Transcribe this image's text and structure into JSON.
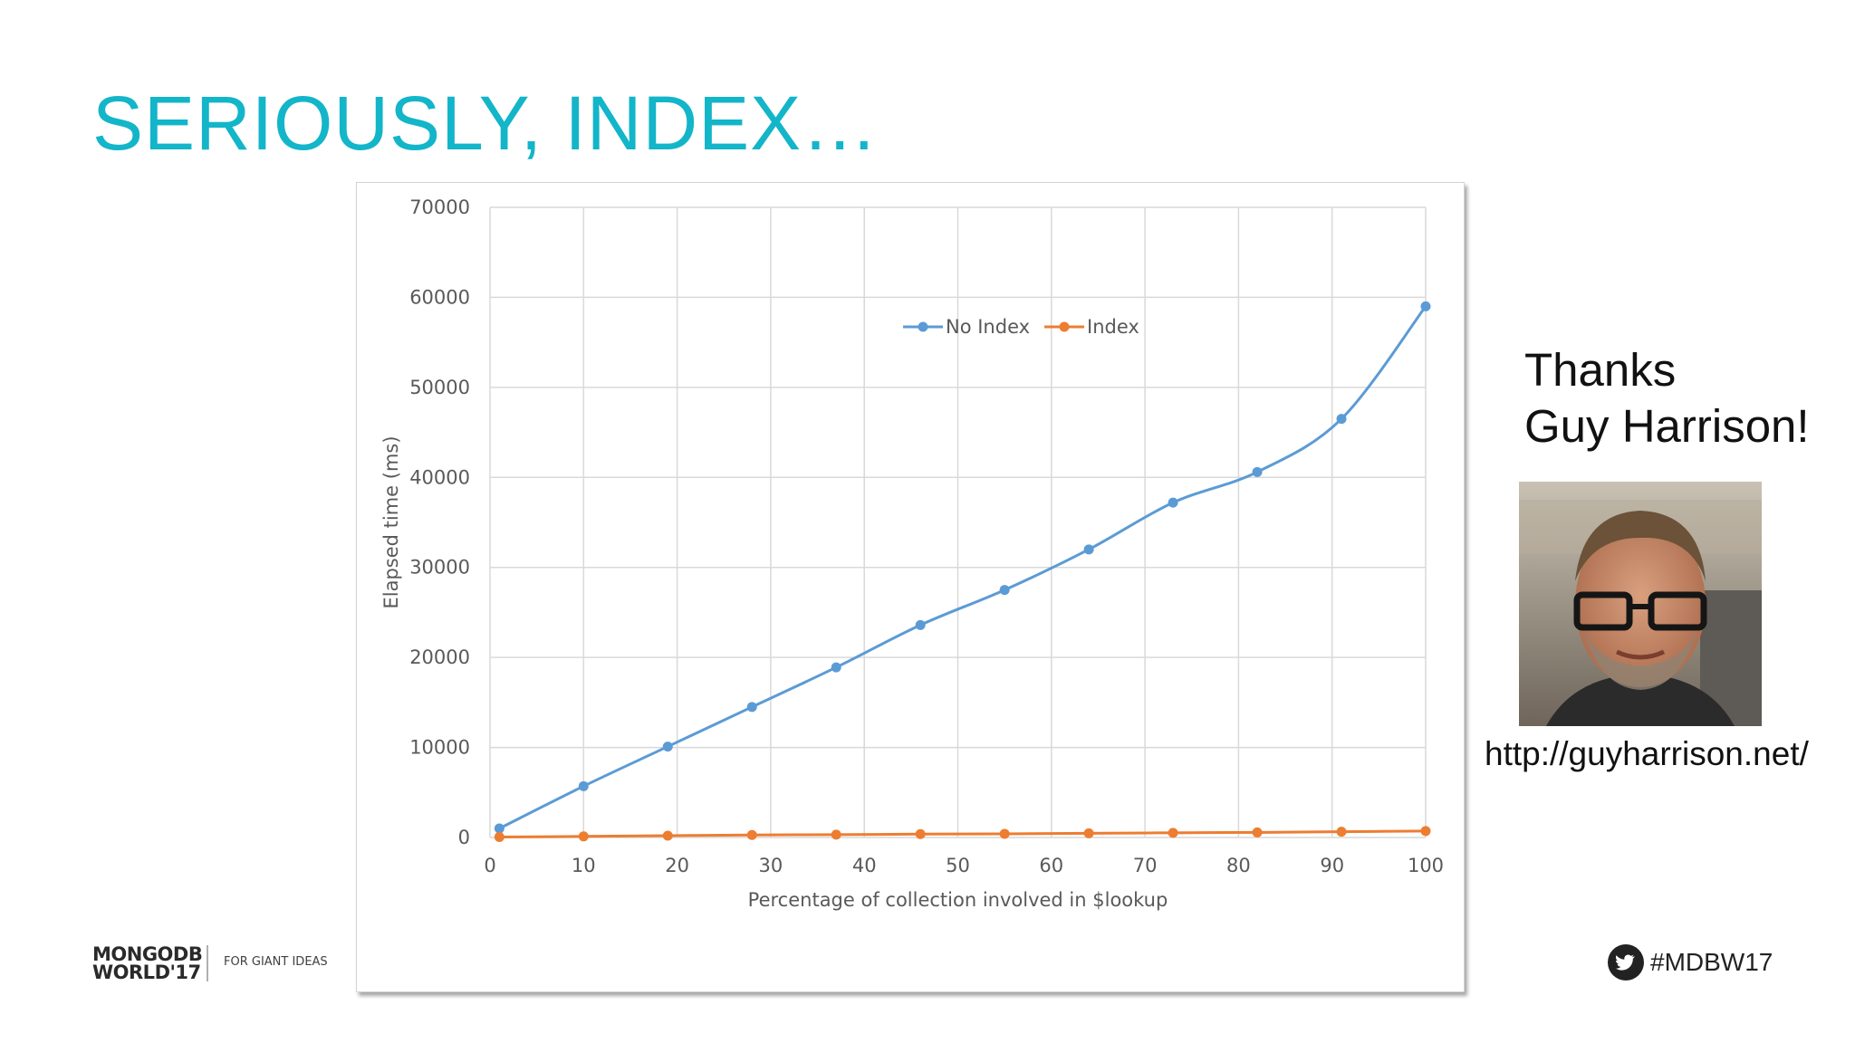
{
  "slide": {
    "title": "SERIOUSLY, INDEX…",
    "thanks_line1": "Thanks",
    "thanks_line2": "Guy Harrison!",
    "url": "http://guyharrison.net/",
    "hashtag": "#MDBW17",
    "logo_line1": "MONGODB",
    "logo_line2": "WORLD'17",
    "tagline": "FOR GIANT IDEAS"
  },
  "icons": {
    "twitter": "twitter-bird-icon"
  },
  "chart_data": {
    "type": "line",
    "title": "",
    "xlabel": "Percentage of collection involved in $lookup",
    "ylabel": "Elapsed time (ms)",
    "xlim": [
      0,
      100
    ],
    "ylim": [
      0,
      70000
    ],
    "x_ticks": [
      0,
      10,
      20,
      30,
      40,
      50,
      60,
      70,
      80,
      90,
      100
    ],
    "y_ticks": [
      0,
      10000,
      20000,
      30000,
      40000,
      50000,
      60000,
      70000
    ],
    "grid": true,
    "legend_position": "top-center",
    "series": [
      {
        "name": "No Index",
        "color": "#5b9bd5",
        "x": [
          1,
          10,
          19,
          28,
          37,
          46,
          55,
          64,
          73,
          82,
          91,
          100
        ],
        "values": [
          1000,
          5700,
          10100,
          14500,
          18900,
          23600,
          27500,
          32000,
          37200,
          40600,
          46500,
          59000
        ]
      },
      {
        "name": "Index",
        "color": "#ed7d31",
        "x": [
          1,
          10,
          19,
          28,
          37,
          46,
          55,
          64,
          73,
          82,
          91,
          100
        ],
        "values": [
          50,
          120,
          200,
          280,
          310,
          380,
          400,
          470,
          520,
          560,
          640,
          720
        ]
      }
    ]
  }
}
